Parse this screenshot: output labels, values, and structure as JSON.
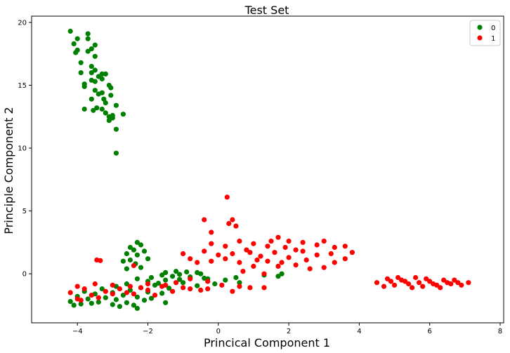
{
  "chart_data": {
    "type": "scatter",
    "title": "Test Set",
    "xlabel": "Princical Component 1",
    "ylabel": "Principle Component 2",
    "xlim": [
      -5.3,
      8.1
    ],
    "ylim": [
      -3.9,
      20.5
    ],
    "xticks": [
      -4,
      -2,
      0,
      2,
      4,
      6,
      8
    ],
    "xtick_labels": [
      "−4",
      "−2",
      "0",
      "2",
      "4",
      "6",
      "8"
    ],
    "yticks": [
      0,
      5,
      10,
      15,
      20
    ],
    "ytick_labels": [
      "0",
      "5",
      "10",
      "15",
      "20"
    ],
    "grid": false,
    "legend": "top-right",
    "series": [
      {
        "name": "0",
        "color": "#008000",
        "points": [
          [
            -4.2,
            19.3
          ],
          [
            -3.7,
            19.1
          ],
          [
            -4.0,
            18.7
          ],
          [
            -3.7,
            18.7
          ],
          [
            -4.1,
            18.3
          ],
          [
            -3.5,
            18.2
          ],
          [
            -3.6,
            17.9
          ],
          [
            -3.7,
            17.7
          ],
          [
            -4.0,
            17.8
          ],
          [
            -4.05,
            17.6
          ],
          [
            -3.5,
            17.3
          ],
          [
            -3.9,
            16.8
          ],
          [
            -3.6,
            16.5
          ],
          [
            -3.5,
            16.2
          ],
          [
            -3.6,
            16.0
          ],
          [
            -3.9,
            16.0
          ],
          [
            -3.3,
            15.9
          ],
          [
            -3.2,
            15.9
          ],
          [
            -3.4,
            15.7
          ],
          [
            -3.3,
            15.5
          ],
          [
            -3.6,
            15.4
          ],
          [
            -3.5,
            15.3
          ],
          [
            -3.8,
            15.1
          ],
          [
            -3.1,
            15.0
          ],
          [
            -3.8,
            14.9
          ],
          [
            -3.05,
            14.8
          ],
          [
            -3.5,
            14.6
          ],
          [
            -3.3,
            14.4
          ],
          [
            -3.4,
            14.3
          ],
          [
            -3.05,
            14.2
          ],
          [
            -3.6,
            13.9
          ],
          [
            -3.25,
            13.9
          ],
          [
            -3.2,
            13.6
          ],
          [
            -2.9,
            13.4
          ],
          [
            -3.8,
            13.1
          ],
          [
            -3.45,
            13.2
          ],
          [
            -3.3,
            13.1
          ],
          [
            -3.55,
            13.0
          ],
          [
            -3.2,
            12.8
          ],
          [
            -3.0,
            12.6
          ],
          [
            -2.7,
            12.7
          ],
          [
            -3.1,
            12.5
          ],
          [
            -3.0,
            12.4
          ],
          [
            -3.1,
            12.2
          ],
          [
            -2.9,
            11.5
          ],
          [
            -2.9,
            9.6
          ],
          [
            -2.3,
            2.5
          ],
          [
            -2.2,
            2.3
          ],
          [
            -2.5,
            2.1
          ],
          [
            -2.4,
            1.9
          ],
          [
            -2.1,
            1.8
          ],
          [
            -2.6,
            1.6
          ],
          [
            -2.3,
            1.5
          ],
          [
            -2.0,
            1.2
          ],
          [
            -2.5,
            1.1
          ],
          [
            -2.7,
            1.0
          ],
          [
            -2.35,
            0.8
          ],
          [
            -2.2,
            0.5
          ],
          [
            -2.6,
            0.4
          ],
          [
            -1.2,
            0.2
          ],
          [
            -1.5,
            0.1
          ],
          [
            -0.9,
            0.15
          ],
          [
            -0.6,
            0.1
          ],
          [
            -0.5,
            0.0
          ],
          [
            -1.1,
            -0.05
          ],
          [
            -1.6,
            -0.1
          ],
          [
            -1.3,
            -0.2
          ],
          [
            -0.8,
            -0.25
          ],
          [
            -1.9,
            -0.3
          ],
          [
            -0.4,
            -0.35
          ],
          [
            -2.3,
            -0.4
          ],
          [
            -1.5,
            -0.5
          ],
          [
            -2.0,
            -0.6
          ],
          [
            -1.0,
            -0.7
          ],
          [
            -2.6,
            -0.8
          ],
          [
            -1.8,
            -0.9
          ],
          [
            -0.6,
            -0.95
          ],
          [
            -2.9,
            -1.0
          ],
          [
            -2.2,
            -1.1
          ],
          [
            -1.4,
            -1.15
          ],
          [
            -3.3,
            -1.2
          ],
          [
            -2.5,
            -1.3
          ],
          [
            -3.8,
            -1.4
          ],
          [
            -2.0,
            -1.45
          ],
          [
            -3.0,
            -1.5
          ],
          [
            -1.6,
            -1.55
          ],
          [
            -3.5,
            -1.6
          ],
          [
            -2.7,
            -1.7
          ],
          [
            -4.0,
            -1.8
          ],
          [
            -2.3,
            -1.85
          ],
          [
            -3.2,
            -1.9
          ],
          [
            -1.9,
            -1.95
          ],
          [
            -3.7,
            -2.0
          ],
          [
            -2.9,
            -2.05
          ],
          [
            -2.1,
            -2.1
          ],
          [
            -4.2,
            -2.2
          ],
          [
            -3.4,
            -2.25
          ],
          [
            -2.6,
            -2.3
          ],
          [
            -1.5,
            -2.3
          ],
          [
            -3.9,
            -2.4
          ],
          [
            -3.0,
            -2.45
          ],
          [
            -2.4,
            -2.5
          ],
          [
            -2.8,
            -2.6
          ],
          [
            -2.3,
            -2.75
          ],
          [
            -4.1,
            -2.5
          ],
          [
            -3.6,
            -2.35
          ],
          [
            -0.3,
            -0.4
          ],
          [
            0.2,
            -0.5
          ],
          [
            -0.1,
            -0.8
          ],
          [
            0.5,
            -0.3
          ],
          [
            0.6,
            -0.7
          ],
          [
            1.3,
            -0.1
          ],
          [
            1.7,
            -0.2
          ],
          [
            1.8,
            0.0
          ],
          [
            -1.7,
            -0.75
          ],
          [
            -1.1,
            -0.45
          ]
        ]
      },
      {
        "name": "1",
        "color": "#ff0000",
        "points": [
          [
            0.25,
            6.1
          ],
          [
            -0.4,
            4.3
          ],
          [
            0.4,
            4.3
          ],
          [
            0.3,
            4.0
          ],
          [
            0.5,
            3.8
          ],
          [
            -0.2,
            3.3
          ],
          [
            -3.45,
            1.1
          ],
          [
            -3.35,
            1.05
          ],
          [
            -2.4,
            0.65
          ],
          [
            -0.2,
            2.4
          ],
          [
            0.2,
            2.2
          ],
          [
            0.6,
            2.6
          ],
          [
            1.0,
            2.4
          ],
          [
            1.4,
            2.2
          ],
          [
            1.7,
            2.9
          ],
          [
            2.0,
            2.6
          ],
          [
            2.4,
            2.5
          ],
          [
            2.8,
            2.3
          ],
          [
            3.0,
            2.6
          ],
          [
            3.3,
            2.1
          ],
          [
            3.6,
            2.2
          ],
          [
            3.8,
            1.7
          ],
          [
            3.6,
            1.2
          ],
          [
            3.3,
            0.9
          ],
          [
            3.0,
            0.5
          ],
          [
            2.6,
            0.4
          ],
          [
            2.2,
            0.7
          ],
          [
            1.8,
            0.9
          ],
          [
            1.4,
            1.0
          ],
          [
            1.0,
            0.6
          ],
          [
            0.6,
            0.9
          ],
          [
            0.2,
            1.2
          ],
          [
            -0.2,
            1.0
          ],
          [
            -0.6,
            0.9
          ],
          [
            -1.0,
            1.6
          ],
          [
            -0.8,
            1.2
          ],
          [
            -0.4,
            1.8
          ],
          [
            0.0,
            1.5
          ],
          [
            0.4,
            1.6
          ],
          [
            0.8,
            1.9
          ],
          [
            1.2,
            1.4
          ],
          [
            1.6,
            1.7
          ],
          [
            2.0,
            1.3
          ],
          [
            2.4,
            1.8
          ],
          [
            2.8,
            1.5
          ],
          [
            3.2,
            1.6
          ],
          [
            1.5,
            2.6
          ],
          [
            1.1,
            1.1
          ],
          [
            0.7,
            0.2
          ],
          [
            1.3,
            0.0
          ],
          [
            1.9,
            2.1
          ],
          [
            2.5,
            1.1
          ],
          [
            0.9,
            1.7
          ],
          [
            1.7,
            0.6
          ],
          [
            2.2,
            1.9
          ],
          [
            1.3,
            -1.1
          ],
          [
            -0.8,
            -0.4
          ],
          [
            -0.3,
            -0.6
          ],
          [
            0.1,
            -0.9
          ],
          [
            0.6,
            -1.0
          ],
          [
            0.9,
            -1.1
          ],
          [
            -0.5,
            -1.3
          ],
          [
            -1.0,
            -1.1
          ],
          [
            -1.5,
            -0.9
          ],
          [
            -2.0,
            -0.8
          ],
          [
            -2.5,
            -1.0
          ],
          [
            -3.0,
            -0.9
          ],
          [
            -3.5,
            -0.8
          ],
          [
            -4.0,
            -1.0
          ],
          [
            -4.2,
            -1.5
          ],
          [
            -4.0,
            -2.0
          ],
          [
            -3.6,
            -1.7
          ],
          [
            -3.2,
            -1.4
          ],
          [
            -2.8,
            -1.2
          ],
          [
            -2.4,
            -1.6
          ],
          [
            -2.0,
            -1.3
          ],
          [
            -1.6,
            -1.0
          ],
          [
            -1.2,
            -0.7
          ],
          [
            -0.8,
            -1.2
          ],
          [
            -3.8,
            -1.2
          ],
          [
            -3.4,
            -1.9
          ],
          [
            -2.6,
            -1.5
          ],
          [
            -1.8,
            -1.7
          ],
          [
            -3.0,
            -1.6
          ],
          [
            -3.9,
            -2.1
          ],
          [
            -2.2,
            -1.1
          ],
          [
            -1.3,
            -1.4
          ],
          [
            -0.3,
            -1.2
          ],
          [
            0.4,
            -1.4
          ],
          [
            4.5,
            -0.7
          ],
          [
            4.8,
            -0.4
          ],
          [
            5.0,
            -0.9
          ],
          [
            5.2,
            -0.5
          ],
          [
            5.4,
            -0.8
          ],
          [
            5.6,
            -0.3
          ],
          [
            5.8,
            -1.0
          ],
          [
            6.0,
            -0.6
          ],
          [
            6.2,
            -0.9
          ],
          [
            6.4,
            -0.5
          ],
          [
            6.6,
            -0.8
          ],
          [
            6.8,
            -0.7
          ],
          [
            7.1,
            -0.7
          ],
          [
            4.7,
            -1.0
          ],
          [
            5.1,
            -0.3
          ],
          [
            5.5,
            -1.1
          ],
          [
            5.9,
            -0.4
          ],
          [
            6.3,
            -1.1
          ],
          [
            6.7,
            -0.5
          ],
          [
            5.3,
            -0.6
          ],
          [
            5.7,
            -0.7
          ],
          [
            6.1,
            -0.8
          ],
          [
            4.9,
            -0.6
          ],
          [
            6.5,
            -0.7
          ],
          [
            6.9,
            -0.9
          ]
        ]
      }
    ]
  }
}
